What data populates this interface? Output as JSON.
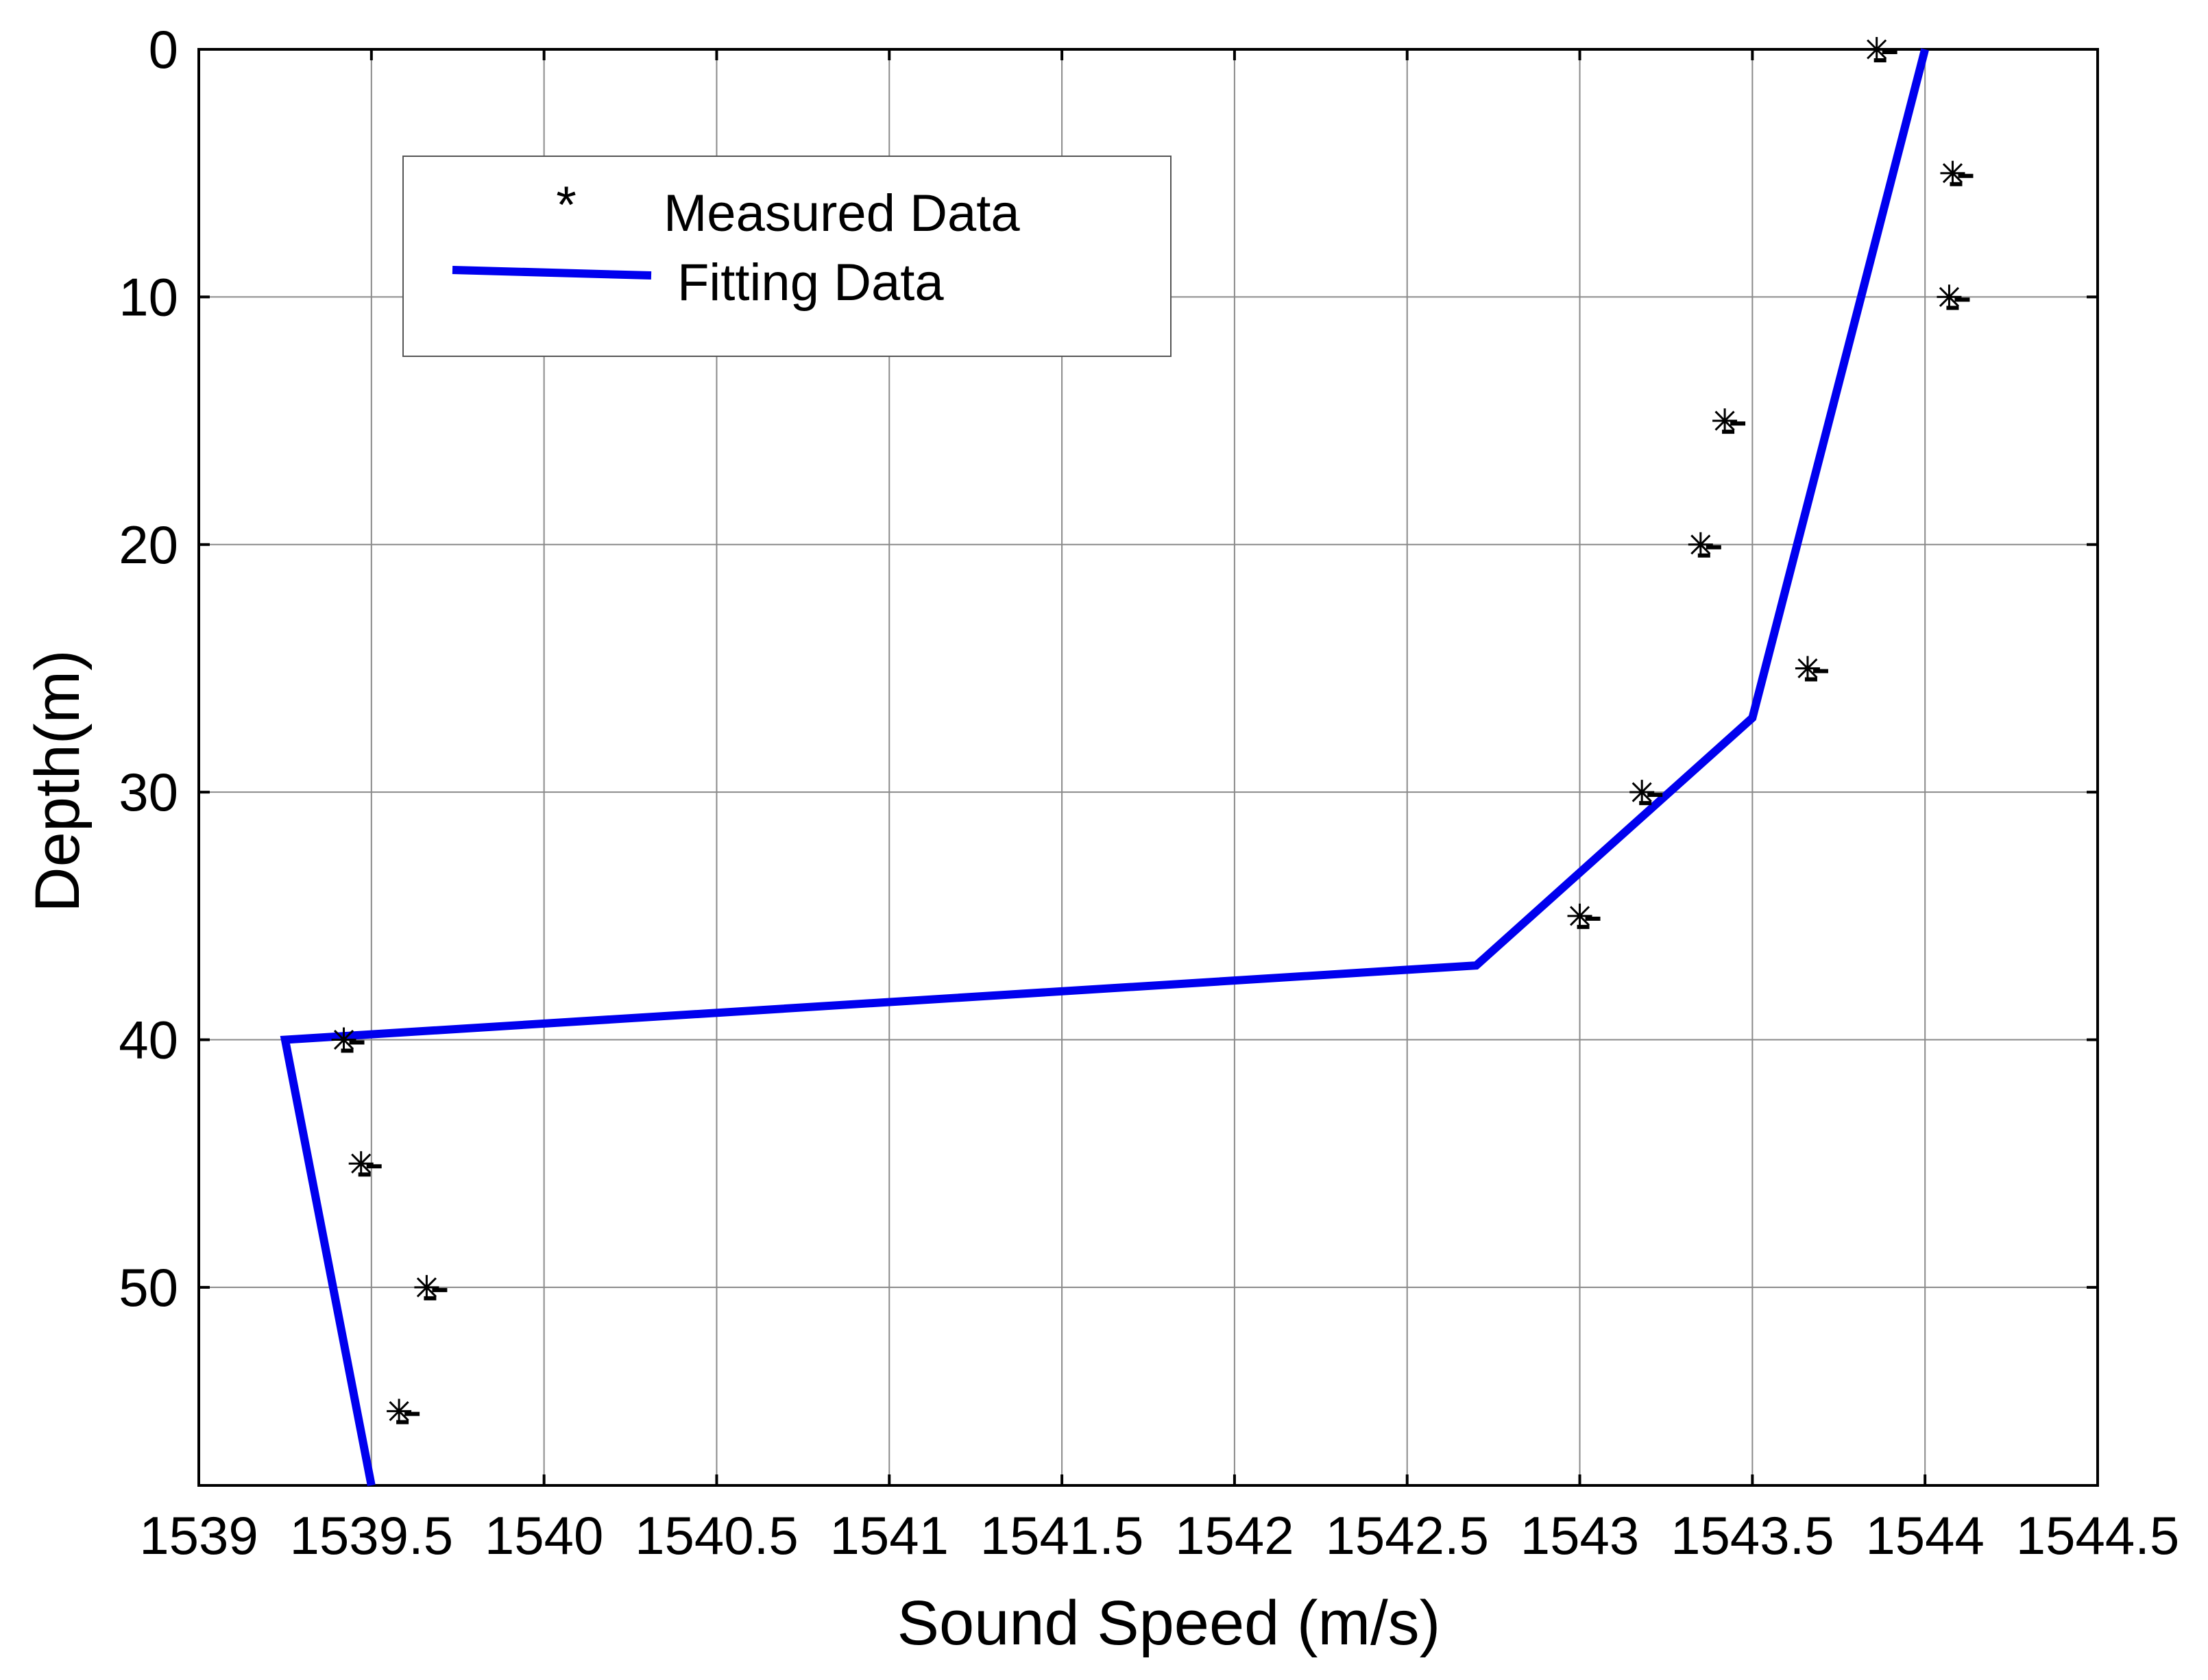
{
  "chart_data": {
    "type": "line",
    "xlabel": "Sound Speed (m/s)",
    "ylabel": "Depth(m)",
    "xlim": [
      1539,
      1544.5
    ],
    "ylim": [
      0,
      58
    ],
    "y_reversed": true,
    "grid": true,
    "legend_position": "top-left",
    "xticks": [
      "1539",
      "1539.5",
      "1540",
      "1540.5",
      "1541",
      "1541.5",
      "1542",
      "1542.5",
      "1543",
      "1543.5",
      "1544",
      "1544.5"
    ],
    "xtick_values": [
      1539,
      1539.5,
      1540,
      1540.5,
      1541,
      1541.5,
      1542,
      1542.5,
      1543,
      1543.5,
      1544,
      1544.5
    ],
    "yticks": [
      "0",
      "10",
      "20",
      "30",
      "40",
      "50"
    ],
    "ytick_values": [
      0,
      10,
      20,
      30,
      40,
      50
    ],
    "series": [
      {
        "name": "Measured Data",
        "legend_symbol": "*",
        "kind": "scatter",
        "color": "#000000",
        "x": [
          1543.86,
          1544.08,
          1544.07,
          1543.42,
          1543.35,
          1543.66,
          1543.18,
          1543.0,
          1539.42,
          1539.47,
          1539.66,
          1539.58
        ],
        "y": [
          0,
          5,
          10,
          15,
          20,
          25,
          30,
          35,
          40,
          45,
          50,
          55
        ]
      },
      {
        "name": "Fitting Data",
        "kind": "line",
        "color": "#0000ee",
        "x": [
          1544.0,
          1543.5,
          1542.7,
          1539.25,
          1539.5
        ],
        "y": [
          0,
          27,
          37,
          40,
          58
        ]
      }
    ]
  }
}
